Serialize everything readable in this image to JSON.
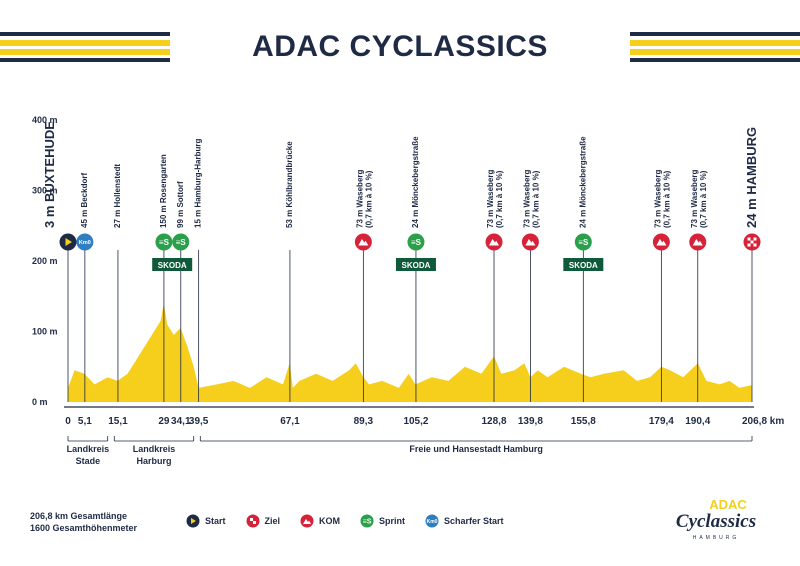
{
  "header": {
    "title": "ADAC CYCLASSICS"
  },
  "colors": {
    "navy": "#1f2a44",
    "yellow": "#f6cf1c",
    "red": "#d7233a",
    "green": "#2aa04a",
    "blue": "#2f7ec2",
    "sponsor_green": "#0f5a3a"
  },
  "chart_data": {
    "type": "area",
    "title": "",
    "xlabel": "",
    "ylabel": "",
    "x_unit": "km",
    "xlim": [
      0,
      206.8
    ],
    "ylim": [
      0,
      500
    ],
    "y_ticks": [
      "400 m",
      "300 m",
      "200 m",
      "100 m",
      "0 m"
    ],
    "x_ticks": [
      {
        "km": 0,
        "label": "0"
      },
      {
        "km": 5.1,
        "label": "5,1"
      },
      {
        "km": 15.1,
        "label": "15,1"
      },
      {
        "km": 29,
        "label": "29"
      },
      {
        "km": 34.1,
        "label": "34,1"
      },
      {
        "km": 39.5,
        "label": "39,5"
      },
      {
        "km": 67.1,
        "label": "67,1"
      },
      {
        "km": 89.3,
        "label": "89,3"
      },
      {
        "km": 105.2,
        "label": "105,2"
      },
      {
        "km": 128.8,
        "label": "128,8"
      },
      {
        "km": 139.8,
        "label": "139,8"
      },
      {
        "km": 155.8,
        "label": "155,8"
      },
      {
        "km": 179.4,
        "label": "179,4"
      },
      {
        "km": 190.4,
        "label": "190,4"
      },
      {
        "km": 206.8,
        "label": "206,8 km"
      }
    ],
    "profile": {
      "x": [
        0,
        2,
        5,
        8,
        12,
        15,
        18,
        20,
        22,
        24,
        26,
        28,
        29,
        30,
        32,
        34,
        36,
        38,
        39.5,
        45,
        50,
        55,
        60,
        65,
        67,
        68,
        70,
        75,
        80,
        85,
        87,
        89.3,
        91,
        95,
        100,
        103,
        105,
        110,
        115,
        120,
        125,
        128.8,
        131,
        135,
        138,
        139.8,
        142,
        145,
        150,
        155,
        158,
        162,
        168,
        172,
        176,
        179.4,
        182,
        186,
        190.4,
        193,
        197,
        200,
        203,
        206.8
      ],
      "y": [
        20,
        45,
        40,
        25,
        35,
        30,
        40,
        55,
        70,
        85,
        100,
        115,
        140,
        110,
        95,
        105,
        80,
        50,
        20,
        25,
        30,
        20,
        35,
        25,
        55,
        20,
        30,
        40,
        30,
        45,
        55,
        35,
        25,
        30,
        20,
        40,
        25,
        35,
        30,
        50,
        40,
        65,
        40,
        45,
        55,
        35,
        45,
        35,
        50,
        40,
        35,
        40,
        45,
        30,
        35,
        50,
        45,
        35,
        55,
        30,
        25,
        30,
        20,
        24
      ]
    },
    "markers": [
      {
        "km": 0,
        "type": "start",
        "name": "BUXTEHUDE",
        "elev": "3 m",
        "big": true
      },
      {
        "km": 5.1,
        "type": "scharfer-start",
        "name": "Beckdorf",
        "elev": "45 m"
      },
      {
        "km": 15.1,
        "type": "place",
        "name": "Hollenstedt",
        "elev": "27 m"
      },
      {
        "km": 29,
        "type": "sprint",
        "name": "Rosengarten",
        "elev": "150 m"
      },
      {
        "km": 34.1,
        "type": "sprint",
        "name": "Sottorf",
        "elev": "99 m"
      },
      {
        "km": 39.5,
        "type": "place",
        "name": "Hamburg-Harburg",
        "elev": "15 m"
      },
      {
        "km": 67.1,
        "type": "place",
        "name": "Köhlbrandbrücke",
        "elev": "53 m"
      },
      {
        "km": 89.3,
        "type": "kom",
        "name": "Waseberg",
        "note": "(0,7 km à 10 %)",
        "elev": "73 m"
      },
      {
        "km": 105.2,
        "type": "sprint",
        "name": "Mönckebergstraße",
        "elev": "24 m"
      },
      {
        "km": 128.8,
        "type": "kom",
        "name": "Waseberg",
        "note": "(0,7 km à 10 %)",
        "elev": "73 m"
      },
      {
        "km": 139.8,
        "type": "kom",
        "name": "Waseberg",
        "note": "(0,7 km à 10 %)",
        "elev": "73 m"
      },
      {
        "km": 155.8,
        "type": "sprint",
        "name": "Mönckebergstraße",
        "elev": "24 m"
      },
      {
        "km": 179.4,
        "type": "kom",
        "name": "Waseberg",
        "note": "(0,7 km à 10 %)",
        "elev": "73 m"
      },
      {
        "km": 190.4,
        "type": "kom",
        "name": "Waseberg",
        "note": "(0,7 km à 10 %)",
        "elev": "73 m"
      },
      {
        "km": 206.8,
        "type": "ziel",
        "name": "HAMBURG",
        "elev": "24 m",
        "big": true
      }
    ],
    "sponsor_boxes": [
      {
        "km": 31.5,
        "label": "SKODA"
      },
      {
        "km": 105.2,
        "label": "SKODA"
      },
      {
        "km": 155.8,
        "label": "SKODA"
      }
    ],
    "regions": [
      {
        "from_km": 0,
        "to_km": 12,
        "lines": [
          "Landkreis",
          "Stade"
        ]
      },
      {
        "from_km": 14,
        "to_km": 38,
        "lines": [
          "Landkreis",
          "Harburg"
        ]
      },
      {
        "from_km": 40,
        "to_km": 206.8,
        "lines": [
          "Freie und Hansestadt Hamburg"
        ]
      }
    ]
  },
  "stats": {
    "length": "206,8 km Gesamtlänge",
    "climb": "1600 Gesamthöhenmeter"
  },
  "legend": [
    {
      "icon": "start",
      "label": "Start"
    },
    {
      "icon": "ziel",
      "label": "Ziel"
    },
    {
      "icon": "kom",
      "label": "KOM"
    },
    {
      "icon": "sprint",
      "label": "Sprint"
    },
    {
      "icon": "scharfer-start",
      "label": "Scharfer Start"
    }
  ],
  "logo": {
    "top": "ADAC",
    "script": "Cyclassics",
    "sub": "HAMBURG"
  },
  "icon_glyphs": {
    "start_km0": "Km0",
    "sprint": "≡S"
  }
}
